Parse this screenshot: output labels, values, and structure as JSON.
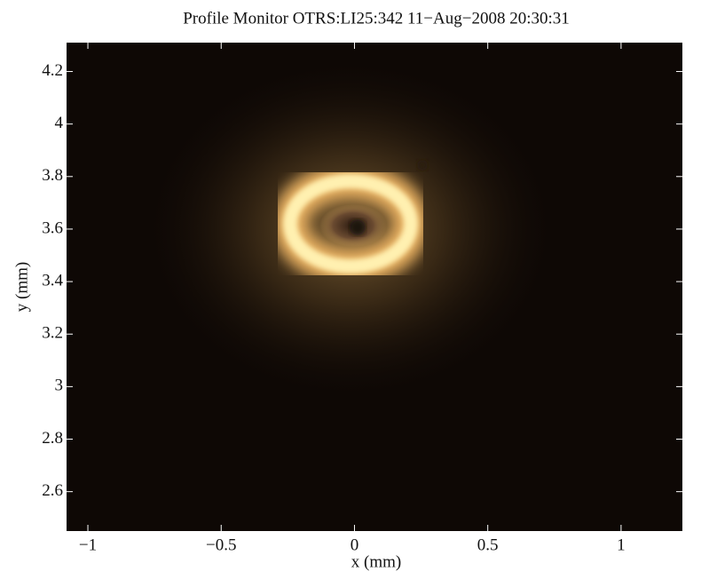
{
  "chart_data": {
    "type": "image",
    "title": "Profile Monitor OTRS:LI25:342 11−Aug−2008 20:30:31",
    "x_label": "x  (mm)",
    "y_label": "y  (mm)",
    "xlim": [
      -1.08,
      1.23
    ],
    "xticks": [
      {
        "value": -1,
        "label": "−1"
      },
      {
        "value": -0.5,
        "label": "−0.5"
      },
      0,
      0.5,
      1
    ],
    "ylim": [
      2.45,
      4.31
    ],
    "yticks": [
      2.6,
      2.8,
      3,
      3.2,
      3.4,
      3.6,
      3.8,
      4,
      4.2
    ]
  }
}
